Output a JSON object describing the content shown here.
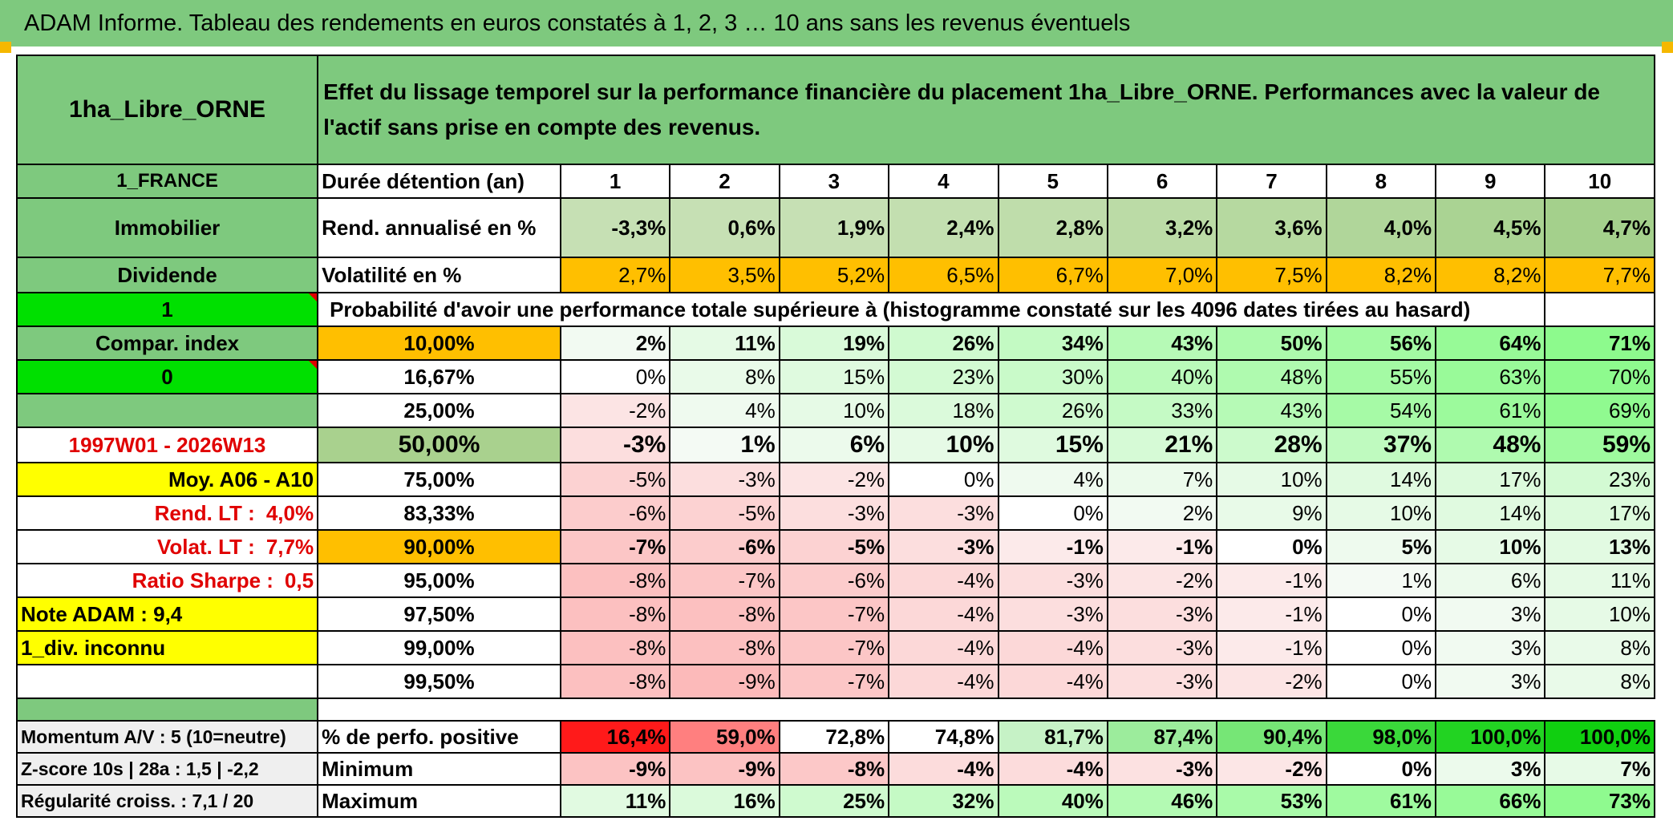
{
  "title": "ADAM Informe. Tableau des rendements en euros constatés à 1, 2, 3 … 10 ans sans les revenus éventuels",
  "header": {
    "asset": "1ha_Libre_ORNE",
    "description": "Effet du lissage temporel sur la performance financière du placement 1ha_Libre_ORNE. Performances avec la valeur de l'actif sans prise en compte des revenus."
  },
  "left": {
    "country": "1_FRANCE",
    "category": "Immobilier",
    "dividend": "Dividende",
    "flag1": "1",
    "compar": "Compar. index",
    "flag0": "0",
    "period": "1997W01 - 2026W13",
    "moy": "Moy. A06 - A10",
    "rend_label": "Rend. LT :",
    "rend_value": "4,0%",
    "volat_label": "Volat. LT :",
    "volat_value": "7,7%",
    "sharpe_label": "Ratio Sharpe :",
    "sharpe_value": "0,5",
    "note": "Note ADAM : 9,4",
    "div": "1_div. inconnu"
  },
  "rows": {
    "duration_label": "Durée détention (an)",
    "years": [
      "1",
      "2",
      "3",
      "4",
      "5",
      "6",
      "7",
      "8",
      "9",
      "10"
    ],
    "rend_label": "Rend. annualisé en %",
    "rend": [
      "-3,3%",
      "0,6%",
      "1,9%",
      "2,4%",
      "2,8%",
      "3,2%",
      "3,6%",
      "4,0%",
      "4,5%",
      "4,7%"
    ],
    "vol_label": "Volatilité en %",
    "vol": [
      "2,7%",
      "3,5%",
      "5,2%",
      "6,5%",
      "6,7%",
      "7,0%",
      "7,5%",
      "8,2%",
      "8,2%",
      "7,7%"
    ],
    "prob_label": "Probabilité d'avoir une performance totale supérieure à (histogramme constaté sur les 4096 dates tirées au hasard)"
  },
  "percentiles": [
    {
      "p": "10,00%",
      "v": [
        "2%",
        "11%",
        "19%",
        "26%",
        "34%",
        "43%",
        "50%",
        "56%",
        "64%",
        "71%"
      ]
    },
    {
      "p": "16,67%",
      "v": [
        "0%",
        "8%",
        "15%",
        "23%",
        "30%",
        "40%",
        "48%",
        "55%",
        "63%",
        "70%"
      ]
    },
    {
      "p": "25,00%",
      "v": [
        "-2%",
        "4%",
        "10%",
        "18%",
        "26%",
        "33%",
        "43%",
        "54%",
        "61%",
        "69%"
      ]
    },
    {
      "p": "50,00%",
      "v": [
        "-3%",
        "1%",
        "6%",
        "10%",
        "15%",
        "21%",
        "28%",
        "37%",
        "48%",
        "59%"
      ]
    },
    {
      "p": "75,00%",
      "v": [
        "-5%",
        "-3%",
        "-2%",
        "0%",
        "4%",
        "7%",
        "10%",
        "14%",
        "17%",
        "23%"
      ]
    },
    {
      "p": "83,33%",
      "v": [
        "-6%",
        "-5%",
        "-3%",
        "-3%",
        "0%",
        "2%",
        "9%",
        "10%",
        "14%",
        "17%"
      ]
    },
    {
      "p": "90,00%",
      "v": [
        "-7%",
        "-6%",
        "-5%",
        "-3%",
        "-1%",
        "-1%",
        "0%",
        "5%",
        "10%",
        "13%"
      ]
    },
    {
      "p": "95,00%",
      "v": [
        "-8%",
        "-7%",
        "-6%",
        "-4%",
        "-3%",
        "-2%",
        "-1%",
        "1%",
        "6%",
        "11%"
      ]
    },
    {
      "p": "97,50%",
      "v": [
        "-8%",
        "-8%",
        "-7%",
        "-4%",
        "-3%",
        "-3%",
        "-1%",
        "0%",
        "3%",
        "10%"
      ]
    },
    {
      "p": "99,00%",
      "v": [
        "-8%",
        "-8%",
        "-7%",
        "-4%",
        "-4%",
        "-3%",
        "-1%",
        "0%",
        "3%",
        "8%"
      ]
    },
    {
      "p": "99,50%",
      "v": [
        "-8%",
        "-9%",
        "-7%",
        "-4%",
        "-4%",
        "-3%",
        "-2%",
        "0%",
        "3%",
        "8%"
      ]
    }
  ],
  "bottom": [
    {
      "left": "Momentum A/V : 5 (10=neutre)",
      "label": "% de perfo. positive",
      "v": [
        "16,4%",
        "59,0%",
        "72,8%",
        "74,8%",
        "81,7%",
        "87,4%",
        "90,4%",
        "98,0%",
        "100,0%",
        "100,0%"
      ]
    },
    {
      "left": "Z-score 10s | 28a : 1,5 | -2,2",
      "label": "Minimum",
      "v": [
        "-9%",
        "-9%",
        "-8%",
        "-4%",
        "-4%",
        "-3%",
        "-2%",
        "0%",
        "3%",
        "7%"
      ]
    },
    {
      "left": "Régularité croiss. : 7,1 / 20",
      "label": "Maximum",
      "v": [
        "11%",
        "16%",
        "25%",
        "32%",
        "40%",
        "46%",
        "53%",
        "61%",
        "66%",
        "73%"
      ]
    }
  ],
  "colors": {
    "header_green": "#7ec97e",
    "bright_green": "#00e000",
    "yellow": "#ffff00",
    "orange": "#ffbf00",
    "red_text": "#e00000"
  }
}
